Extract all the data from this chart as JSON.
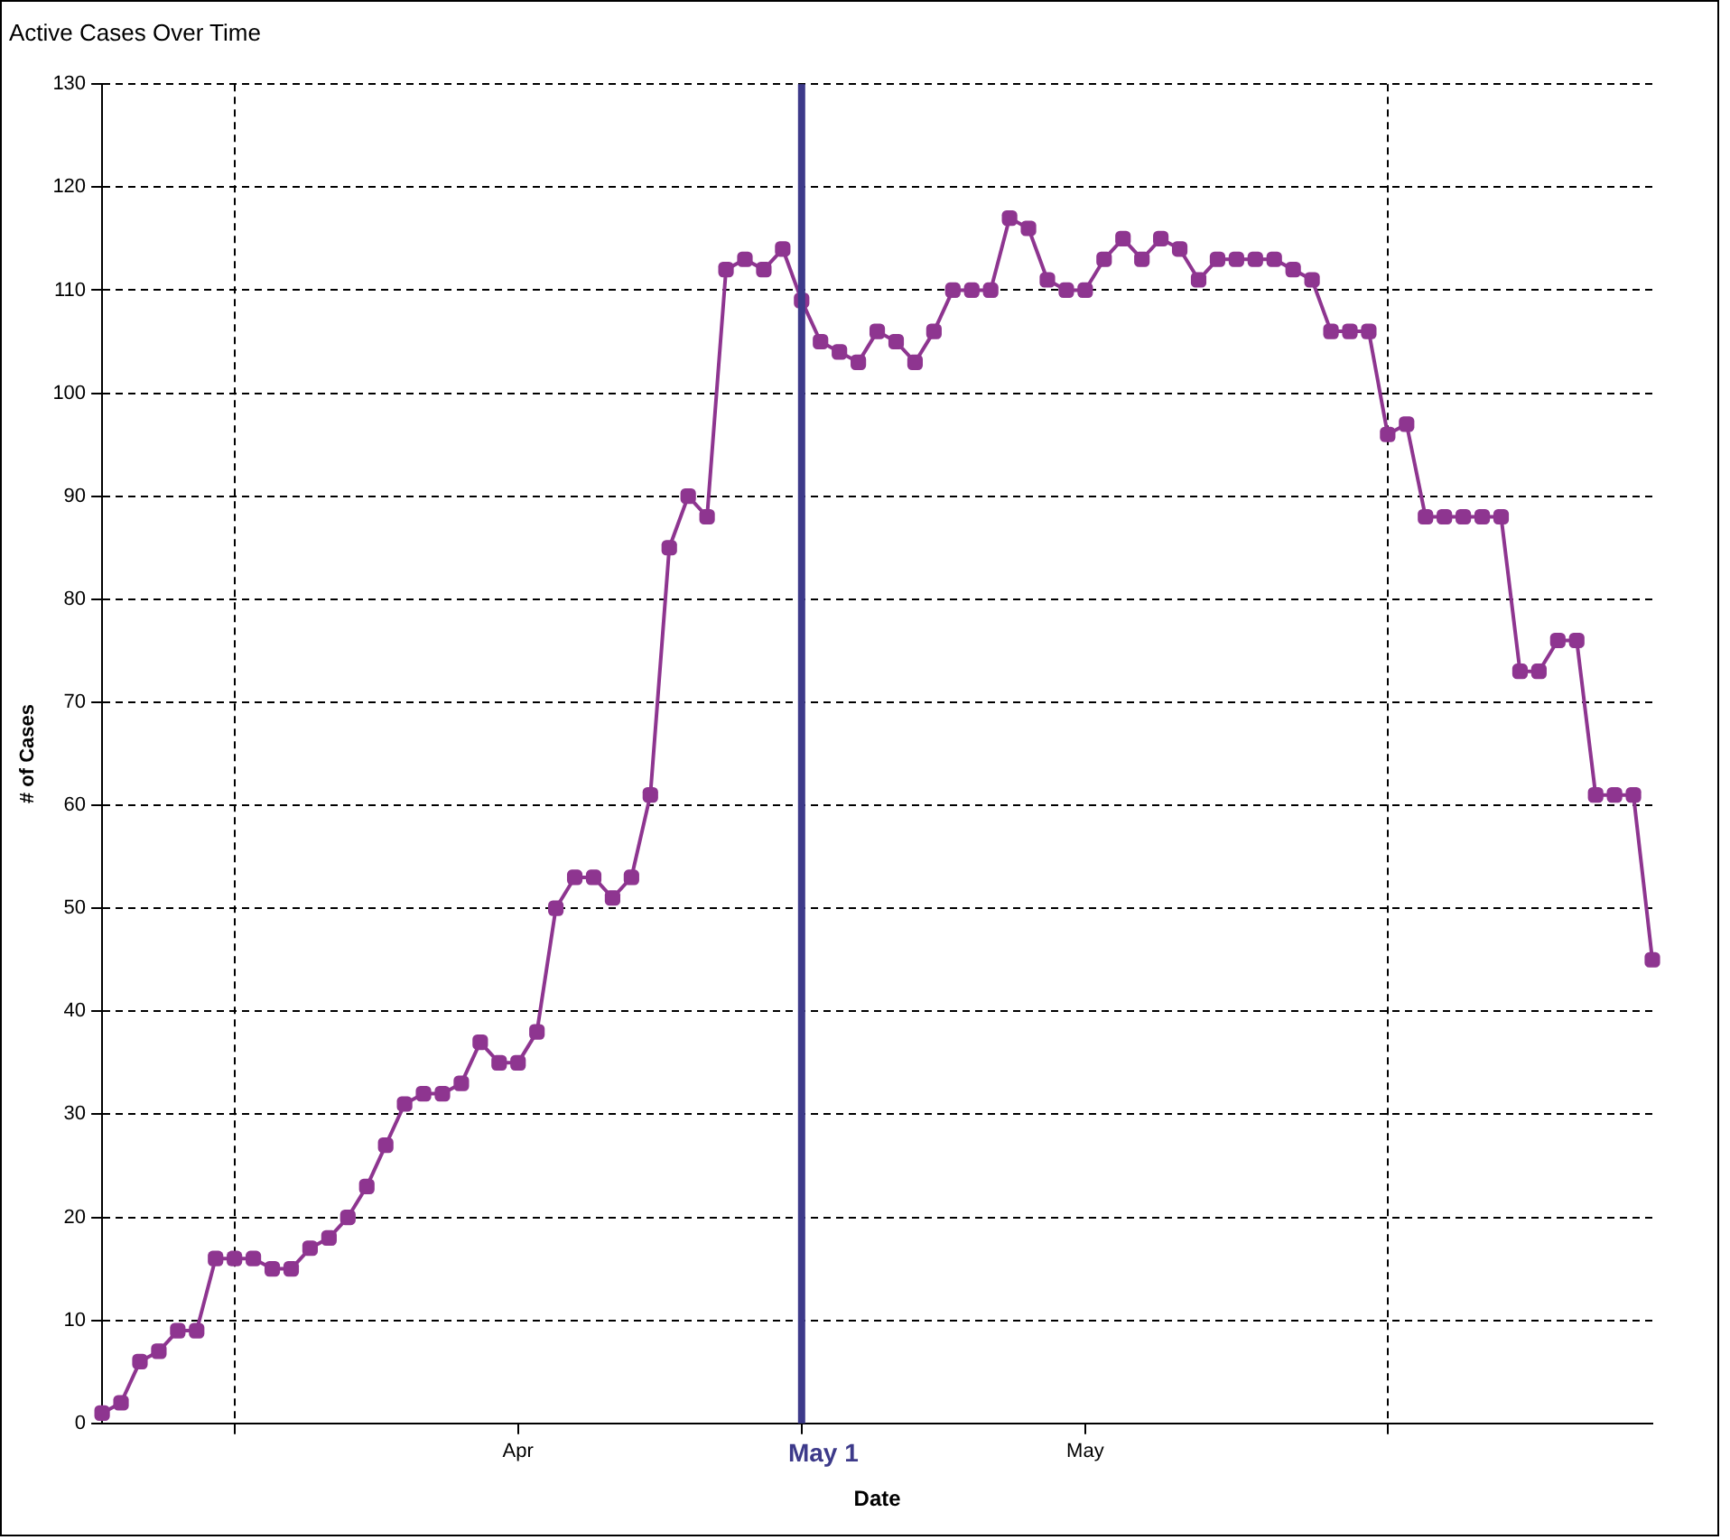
{
  "chart_data": {
    "type": "line",
    "title": "Active Cases Over Time",
    "xlabel": "Date",
    "ylabel": "# of Cases",
    "x": [
      "--03-25",
      "--03-26",
      "--03-27",
      "--03-28",
      "--03-29",
      "--03-30",
      "--03-31",
      "--04-01",
      "--04-02",
      "--04-03",
      "--04-04",
      "--04-05",
      "--04-06",
      "--04-07",
      "--04-08",
      "--04-09",
      "--04-10",
      "--04-11",
      "--04-12",
      "--04-13",
      "--04-14",
      "--04-15",
      "--04-16",
      "--04-17",
      "--04-18",
      "--04-19",
      "--04-20",
      "--04-21",
      "--04-22",
      "--04-23",
      "--04-24",
      "--04-25",
      "--04-26",
      "--04-27",
      "--04-28",
      "--04-29",
      "--04-30",
      "--05-01",
      "--05-02",
      "--05-03",
      "--05-04",
      "--05-05",
      "--05-06",
      "--05-07",
      "--05-08",
      "--05-09",
      "--05-10",
      "--05-11",
      "--05-12",
      "--05-13",
      "--05-14",
      "--05-15",
      "--05-16",
      "--05-17",
      "--05-18",
      "--05-19",
      "--05-20",
      "--05-21",
      "--05-22",
      "--05-23",
      "--05-24",
      "--05-25",
      "--05-26",
      "--05-27",
      "--05-28",
      "--05-29",
      "--05-30",
      "--05-31",
      "--06-01",
      "--06-02",
      "--06-03",
      "--06-04",
      "--06-05",
      "--06-06",
      "--06-07",
      "--06-08",
      "--06-09",
      "--06-10",
      "--06-11",
      "--06-12",
      "--06-13",
      "--06-14",
      "--06-15"
    ],
    "series": [
      {
        "color": "#8e3590",
        "values": [
          1,
          2,
          6,
          7,
          9,
          9,
          16,
          16,
          16,
          15,
          15,
          17,
          18,
          20,
          23,
          27,
          31,
          32,
          32,
          33,
          37,
          35,
          35,
          38,
          50,
          53,
          53,
          51,
          53,
          61,
          85,
          90,
          88,
          112,
          113,
          112,
          114,
          109,
          105,
          104,
          103,
          106,
          105,
          103,
          106,
          110,
          110,
          110,
          117,
          116,
          111,
          110,
          110,
          113,
          115,
          113,
          115,
          114,
          111,
          113,
          113,
          113,
          113,
          112,
          111,
          106,
          106,
          106,
          96,
          97,
          88,
          88,
          88,
          88,
          88,
          73,
          73,
          76,
          76,
          61,
          61,
          61,
          45
        ]
      }
    ],
    "xlim": [
      "--03-25",
      "--06-15"
    ],
    "xticks": [
      {
        "value": "--04-01",
        "label": null
      },
      {
        "value": "--04-16",
        "label": "Apr"
      },
      {
        "value": "--05-01",
        "label": null
      },
      {
        "value": "--05-16",
        "label": "May"
      },
      {
        "value": "--06-01",
        "label": null
      }
    ],
    "ylim": [
      0,
      130
    ],
    "yticks": [
      0,
      10,
      20,
      30,
      40,
      50,
      60,
      70,
      80,
      90,
      100,
      110,
      120,
      130
    ],
    "ref_lines": [
      {
        "axis": "x",
        "value": "--05-01",
        "label": "May 1",
        "color": "#3d3a8a"
      }
    ],
    "grid": true,
    "legend": false,
    "marker": "square",
    "line_style": "solid"
  }
}
